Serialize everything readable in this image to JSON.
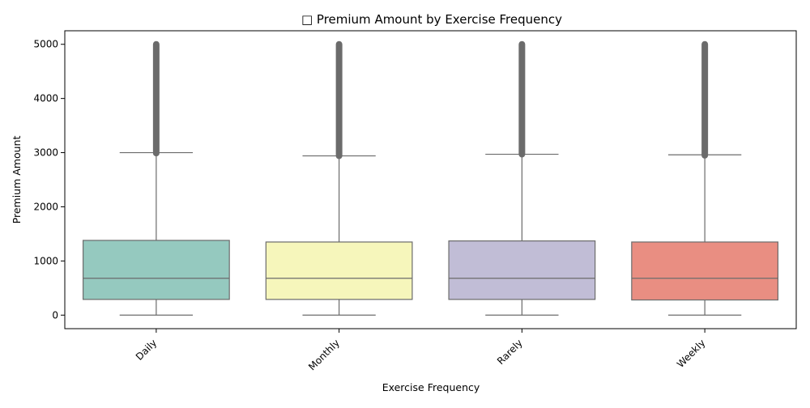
{
  "chart_data": {
    "type": "box",
    "title": "□ Premium Amount by Exercise Frequency",
    "xlabel": "Exercise Frequency",
    "ylabel": "Premium Amount",
    "ylim": [
      -250,
      5250
    ],
    "yticks": [
      0,
      1000,
      2000,
      3000,
      4000,
      5000
    ],
    "grid": false,
    "categories": [
      "Daily",
      "Monthly",
      "Rarely",
      "Weekly"
    ],
    "series": [
      {
        "category": "Daily",
        "whisker_low": 0,
        "q1": 290,
        "median": 680,
        "q3": 1380,
        "whisker_high": 3000,
        "outliers_min": 2990,
        "outliers_max": 5000,
        "color": "#95C9BF"
      },
      {
        "category": "Monthly",
        "whisker_low": 0,
        "q1": 290,
        "median": 680,
        "q3": 1350,
        "whisker_high": 2940,
        "outliers_min": 2940,
        "outliers_max": 5000,
        "color": "#F6F6BB"
      },
      {
        "category": "Rarely",
        "whisker_low": 0,
        "q1": 290,
        "median": 680,
        "q3": 1370,
        "whisker_high": 2970,
        "outliers_min": 2970,
        "outliers_max": 5000,
        "color": "#C1BDD6"
      },
      {
        "category": "Weekly",
        "whisker_low": 0,
        "q1": 280,
        "median": 680,
        "q3": 1350,
        "whisker_high": 2960,
        "outliers_min": 2950,
        "outliers_max": 5000,
        "color": "#E98E82"
      }
    ],
    "line_color": "#6b6b6b"
  }
}
